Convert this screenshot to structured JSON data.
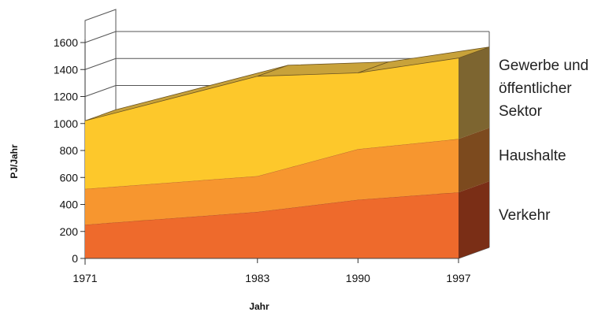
{
  "chart_data": {
    "type": "area",
    "stacked": true,
    "three_d": true,
    "x": [
      "1971",
      "1983",
      "1990",
      "1997"
    ],
    "series": [
      {
        "name": "Verkehr",
        "values": [
          250,
          345,
          435,
          490
        ],
        "color": "#ee6a2c",
        "top_color": "#c9592a",
        "side_color": "#7a2e16"
      },
      {
        "name": "Haushalte",
        "values": [
          265,
          265,
          375,
          395
        ],
        "color": "#f7962f",
        "top_color": "#d98a2a",
        "side_color": "#7c4a1e"
      },
      {
        "name": "Gewerbe und öffentlicher Sektor",
        "legend_lines": [
          "Gewerbe und",
          "öffentlicher",
          "Sektor"
        ],
        "values": [
          505,
          740,
          565,
          600
        ],
        "color": "#fdc82b",
        "top_color": "#c8a23a",
        "side_color": "#7d6530"
      }
    ],
    "xlabel": "Jahr",
    "ylabel": "PJ/Jahr",
    "ylim": [
      0,
      1600
    ],
    "yticks": [
      0,
      200,
      400,
      600,
      800,
      1000,
      1200,
      1400,
      1600
    ],
    "grid": true,
    "legend_position": "right"
  }
}
